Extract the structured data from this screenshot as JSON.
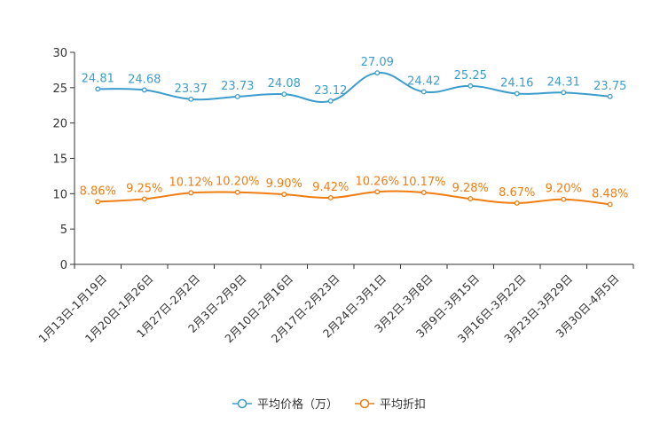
{
  "chart_data": {
    "type": "line",
    "title": "",
    "xlabel": "",
    "ylabel": "",
    "ylim": [
      0,
      30
    ],
    "yticks": [
      "0",
      "5",
      "10",
      "15",
      "20",
      "25",
      "30"
    ],
    "categories": [
      "1月13日-1月19日",
      "1月20日-1月26日",
      "1月27日-2月2日",
      "2月3日-2月9日",
      "2月10日-2月16日",
      "2月17日-2月23日",
      "2月24日-3月1日",
      "3月2日-3月8日",
      "3月9日-3月15日",
      "3月16日-3月22日",
      "3月23日-3月29日",
      "3月30日-4月5日"
    ],
    "series": [
      {
        "name": "平均价格（万）",
        "color": "#3c9dcc",
        "values": [
          24.81,
          24.68,
          23.37,
          23.73,
          24.08,
          23.12,
          27.09,
          24.42,
          25.25,
          24.16,
          24.31,
          23.75
        ],
        "labels": [
          "24.81",
          "24.68",
          "23.37",
          "23.73",
          "24.08",
          "23.12",
          "27.09",
          "24.42",
          "25.25",
          "24.16",
          "24.31",
          "23.75"
        ]
      },
      {
        "name": "平均折扣",
        "color": "#f07d12",
        "values": [
          8.86,
          9.25,
          10.12,
          10.2,
          9.9,
          9.42,
          10.26,
          10.17,
          9.28,
          8.67,
          9.2,
          8.48
        ],
        "labels": [
          "8.86%",
          "9.25%",
          "10.12%",
          "10.20%",
          "9.90%",
          "9.42%",
          "10.26%",
          "10.17%",
          "9.28%",
          "8.67%",
          "9.20%",
          "8.48%"
        ]
      }
    ],
    "legend_position": "bottom"
  }
}
